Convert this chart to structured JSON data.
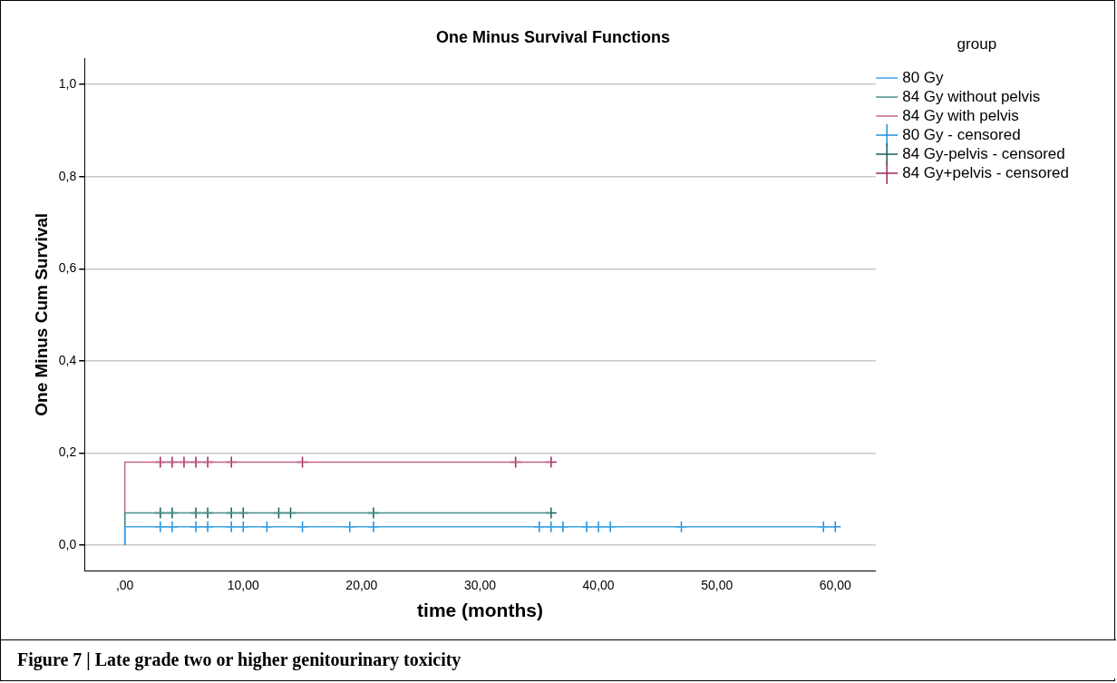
{
  "chart_data": {
    "type": "step",
    "title": "One Minus Survival Functions",
    "xlabel": "time (months)",
    "ylabel": "One Minus Cum Survival",
    "legend_title": "group",
    "legend": "top right",
    "grid": "y",
    "xlim": [
      -3.4,
      63.4
    ],
    "xticks": [
      {
        "value": 0,
        "label": ",00"
      },
      {
        "value": 10,
        "label": "10,00"
      },
      {
        "value": 20,
        "label": "20,00"
      },
      {
        "value": 30,
        "label": "30,00"
      },
      {
        "value": 40,
        "label": "40,00"
      },
      {
        "value": 50,
        "label": "50,00"
      },
      {
        "value": 60,
        "label": "60,00"
      }
    ],
    "ylim": [
      -0.055,
      1.056
    ],
    "yticks": [
      {
        "value": 0,
        "label": "0,0"
      },
      {
        "value": 0.2,
        "label": "0,2"
      },
      {
        "value": 0.4,
        "label": "0,4"
      },
      {
        "value": 0.6,
        "label": "0,6"
      },
      {
        "value": 0.8,
        "label": "0,8"
      },
      {
        "value": 1,
        "label": "1,0"
      }
    ],
    "series": [
      {
        "name": "80 Gy",
        "color": "#3fa4e8",
        "x": [
          0,
          3,
          60
        ],
        "values": [
          0,
          0.04,
          0.04
        ]
      },
      {
        "name": "84 Gy without pelvis",
        "color": "#4a8f88",
        "x": [
          0,
          3,
          36
        ],
        "values": [
          0,
          0.07,
          0.07
        ]
      },
      {
        "name": "84 Gy with pelvis",
        "color": "#c2648c",
        "x": [
          0,
          3,
          36
        ],
        "values": [
          0,
          0.18,
          0.18
        ]
      },
      {
        "name": "80 Gy - censored",
        "type": "scatter",
        "marker": "cross",
        "color": "#1e90e0",
        "x": [
          3,
          4,
          6,
          7,
          9,
          10,
          12,
          15,
          19,
          21,
          35,
          36,
          37,
          39,
          40,
          41,
          47,
          59,
          60
        ],
        "values": [
          0.04,
          0.04,
          0.04,
          0.04,
          0.04,
          0.04,
          0.04,
          0.04,
          0.04,
          0.04,
          0.04,
          0.04,
          0.04,
          0.04,
          0.04,
          0.04,
          0.04,
          0.04,
          0.04
        ]
      },
      {
        "name": "84 Gy-pelvis - censored",
        "type": "scatter",
        "marker": "cross",
        "color": "#14625a",
        "x": [
          3,
          4,
          6,
          7,
          9,
          10,
          13,
          14,
          21,
          36
        ],
        "values": [
          0.07,
          0.07,
          0.07,
          0.07,
          0.07,
          0.07,
          0.07,
          0.07,
          0.07,
          0.07
        ]
      },
      {
        "name": "84 Gy+pelvis - censored",
        "type": "scatter",
        "marker": "cross",
        "color": "#a3285e",
        "x": [
          3,
          4,
          5,
          6,
          7,
          9,
          15,
          33,
          36
        ],
        "values": [
          0.18,
          0.18,
          0.18,
          0.18,
          0.18,
          0.18,
          0.18,
          0.18,
          0.18
        ]
      }
    ],
    "annotations": [
      "Figure 7 | Late grade two or higher genitourinary toxicity"
    ]
  }
}
